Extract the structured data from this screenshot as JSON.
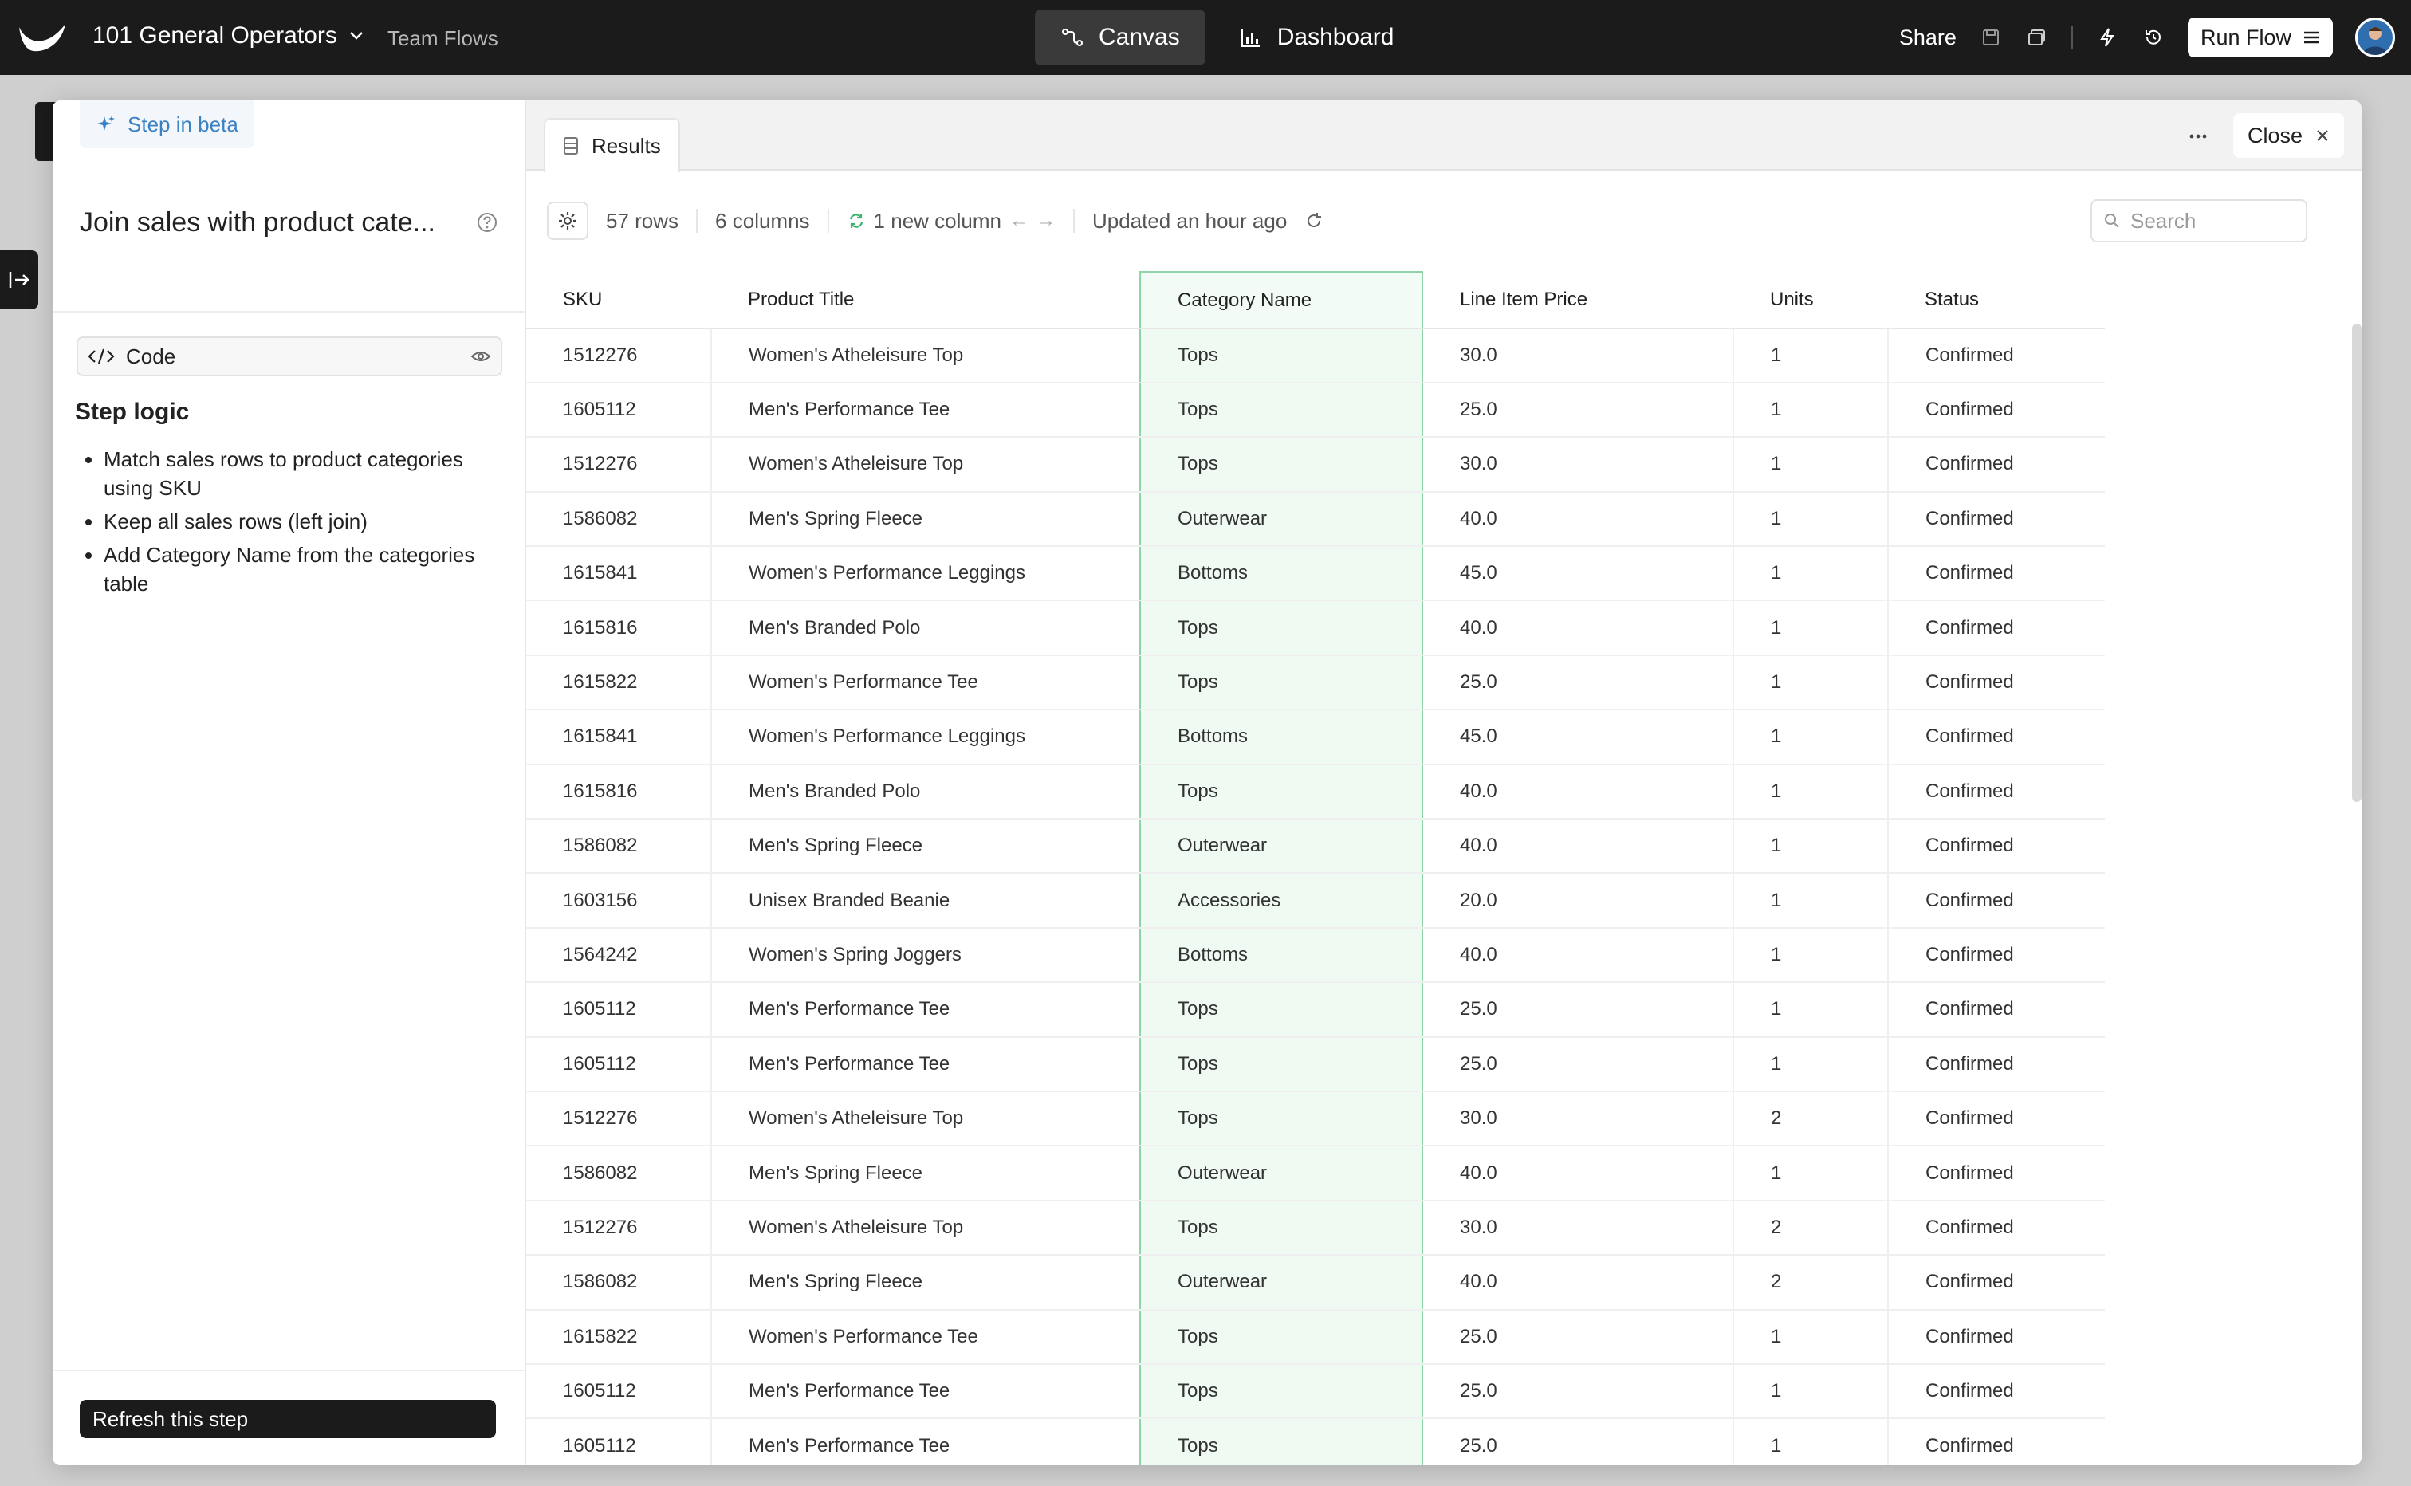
{
  "topbar": {
    "workspace": "101 General Operators",
    "subtitle": "Team Flows",
    "tabs": [
      {
        "label": "Canvas",
        "icon": "flow-icon",
        "active": true
      },
      {
        "label": "Dashboard",
        "icon": "bar-chart-icon",
        "active": false
      }
    ],
    "share_label": "Share",
    "run_label": "Run Flow"
  },
  "left": {
    "beta_label": "Step in beta",
    "step_title": "Join sales with product cate...",
    "code_label": "Code",
    "logic_heading": "Step logic",
    "logic_items": [
      "Match sales rows to product categories using SKU",
      "Keep all sales rows (left join)",
      "Add Category Name from the categories table"
    ],
    "refresh_label": "Refresh this step"
  },
  "right": {
    "tab_label": "Results",
    "close_label": "Close",
    "rows_count": "57 rows",
    "columns_count": "6 columns",
    "new_column": "1 new column",
    "updated": "Updated an hour ago",
    "search_placeholder": "Search"
  },
  "table": {
    "headers": [
      "SKU",
      "Product Title",
      "Category Name",
      "Line Item Price",
      "Units",
      "Status"
    ],
    "rows": [
      [
        "1512276",
        "Women's Atheleisure Top",
        "Tops",
        "30.0",
        "1",
        "Confirmed"
      ],
      [
        "1605112",
        "Men's Performance Tee",
        "Tops",
        "25.0",
        "1",
        "Confirmed"
      ],
      [
        "1512276",
        "Women's Atheleisure Top",
        "Tops",
        "30.0",
        "1",
        "Confirmed"
      ],
      [
        "1586082",
        "Men's Spring Fleece",
        "Outerwear",
        "40.0",
        "1",
        "Confirmed"
      ],
      [
        "1615841",
        "Women's Performance Leggings",
        "Bottoms",
        "45.0",
        "1",
        "Confirmed"
      ],
      [
        "1615816",
        "Men's Branded Polo",
        "Tops",
        "40.0",
        "1",
        "Confirmed"
      ],
      [
        "1615822",
        "Women's Performance Tee",
        "Tops",
        "25.0",
        "1",
        "Confirmed"
      ],
      [
        "1615841",
        "Women's Performance Leggings",
        "Bottoms",
        "45.0",
        "1",
        "Confirmed"
      ],
      [
        "1615816",
        "Men's Branded Polo",
        "Tops",
        "40.0",
        "1",
        "Confirmed"
      ],
      [
        "1586082",
        "Men's Spring Fleece",
        "Outerwear",
        "40.0",
        "1",
        "Confirmed"
      ],
      [
        "1603156",
        "Unisex Branded Beanie",
        "Accessories",
        "20.0",
        "1",
        "Confirmed"
      ],
      [
        "1564242",
        "Women's Spring Joggers",
        "Bottoms",
        "40.0",
        "1",
        "Confirmed"
      ],
      [
        "1605112",
        "Men's Performance Tee",
        "Tops",
        "25.0",
        "1",
        "Confirmed"
      ],
      [
        "1605112",
        "Men's Performance Tee",
        "Tops",
        "25.0",
        "1",
        "Confirmed"
      ],
      [
        "1512276",
        "Women's Atheleisure Top",
        "Tops",
        "30.0",
        "2",
        "Confirmed"
      ],
      [
        "1586082",
        "Men's Spring Fleece",
        "Outerwear",
        "40.0",
        "1",
        "Confirmed"
      ],
      [
        "1512276",
        "Women's Atheleisure Top",
        "Tops",
        "30.0",
        "2",
        "Confirmed"
      ],
      [
        "1586082",
        "Men's Spring Fleece",
        "Outerwear",
        "40.0",
        "2",
        "Confirmed"
      ],
      [
        "1615822",
        "Women's Performance Tee",
        "Tops",
        "25.0",
        "1",
        "Confirmed"
      ],
      [
        "1605112",
        "Men's Performance Tee",
        "Tops",
        "25.0",
        "1",
        "Confirmed"
      ],
      [
        "1605112",
        "Men's Performance Tee",
        "Tops",
        "25.0",
        "1",
        "Confirmed"
      ]
    ]
  },
  "colors": {
    "topbar_bg": "#1b1b1b",
    "accent_blue": "#3b82c4",
    "new_column_green": "#8fd3a8"
  }
}
